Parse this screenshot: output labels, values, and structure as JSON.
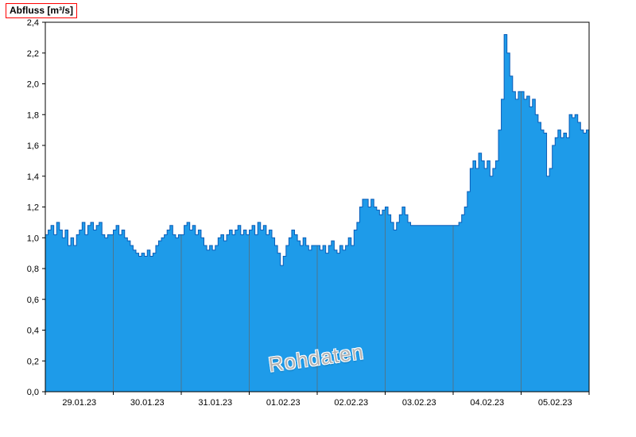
{
  "title": {
    "text": "Abfluss [m³/s]"
  },
  "watermark": {
    "text": "Rohdaten"
  },
  "colors": {
    "fill": "#1e9be9",
    "line": "#0a5cb8",
    "grid": "#55707f",
    "axis": "#000000",
    "title_box": "#ff0000",
    "watermark": "#b3b3b3"
  },
  "chart_data": {
    "type": "area",
    "title": "Abfluss [m³/s]",
    "ylabel": "Abfluss [m³/s]",
    "xlabel": "",
    "ylim": [
      0,
      2.4
    ],
    "y_tick_step": 0.2,
    "y_tick_labels": [
      "0,0",
      "0,2",
      "0,4",
      "0,6",
      "0,8",
      "1,0",
      "1,2",
      "1,4",
      "1,6",
      "1,8",
      "2,0",
      "2,2",
      "2,4"
    ],
    "x_categories": [
      "29.01.23",
      "30.01.23",
      "31.01.23",
      "01.02.23",
      "02.02.23",
      "03.02.23",
      "04.02.23",
      "05.02.23"
    ],
    "samples_per_day": 24,
    "grid": "vertical-day-lines",
    "legend": "none",
    "annotation": "Rohdaten",
    "values": [
      1.02,
      1.05,
      1.08,
      1.02,
      1.1,
      1.05,
      1.0,
      1.05,
      0.95,
      1.0,
      0.95,
      1.02,
      1.05,
      1.1,
      1.02,
      1.08,
      1.1,
      1.05,
      1.08,
      1.1,
      1.02,
      1.0,
      1.02,
      1.02,
      1.05,
      1.08,
      1.02,
      1.05,
      1.0,
      0.98,
      0.95,
      0.92,
      0.9,
      0.88,
      0.9,
      0.88,
      0.92,
      0.88,
      0.9,
      0.95,
      0.98,
      1.0,
      1.02,
      1.05,
      1.08,
      1.02,
      1.0,
      1.02,
      1.02,
      1.08,
      1.1,
      1.05,
      1.08,
      1.02,
      1.05,
      1.0,
      0.95,
      0.92,
      0.95,
      0.92,
      0.95,
      1.0,
      1.02,
      0.98,
      1.02,
      1.05,
      1.02,
      1.05,
      1.08,
      1.02,
      1.05,
      1.02,
      1.05,
      1.08,
      1.02,
      1.1,
      1.05,
      1.08,
      1.02,
      1.05,
      1.0,
      0.95,
      0.9,
      0.82,
      0.88,
      0.95,
      1.0,
      1.05,
      1.02,
      0.98,
      0.95,
      1.0,
      0.95,
      0.92,
      0.95,
      0.95,
      0.95,
      0.92,
      0.95,
      0.9,
      0.95,
      0.98,
      0.92,
      0.9,
      0.95,
      0.92,
      0.95,
      1.0,
      0.95,
      1.05,
      1.1,
      1.2,
      1.25,
      1.25,
      1.2,
      1.25,
      1.2,
      1.18,
      1.15,
      1.18,
      1.2,
      1.15,
      1.1,
      1.05,
      1.1,
      1.15,
      1.2,
      1.15,
      1.1,
      1.08,
      1.08,
      1.08,
      1.08,
      1.08,
      1.08,
      1.08,
      1.08,
      1.08,
      1.08,
      1.08,
      1.08,
      1.08,
      1.08,
      1.08,
      1.08,
      1.08,
      1.1,
      1.15,
      1.2,
      1.3,
      1.45,
      1.5,
      1.45,
      1.55,
      1.5,
      1.45,
      1.5,
      1.4,
      1.45,
      1.5,
      1.7,
      1.9,
      2.32,
      2.2,
      2.05,
      1.95,
      1.9,
      1.95,
      1.95,
      1.9,
      1.92,
      1.85,
      1.9,
      1.8,
      1.75,
      1.7,
      1.68,
      1.4,
      1.45,
      1.6,
      1.65,
      1.7,
      1.65,
      1.68,
      1.65,
      1.8,
      1.78,
      1.8,
      1.75,
      1.7,
      1.68,
      1.7
    ]
  }
}
